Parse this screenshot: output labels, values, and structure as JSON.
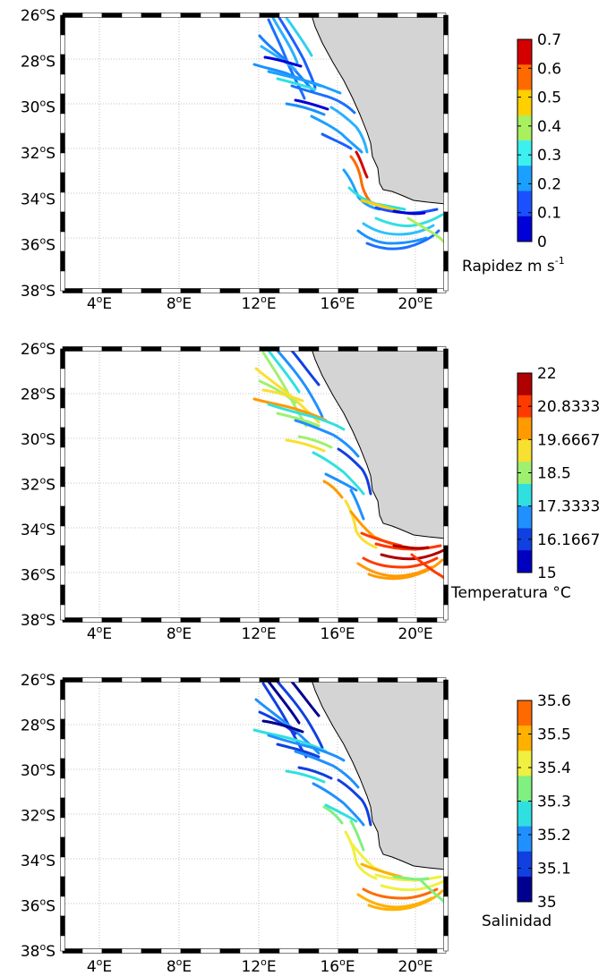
{
  "panels": [
    {
      "id": "speed",
      "colorbar": {
        "title": "Rapidez m s",
        "title_sup": "-1",
        "ticks": [
          "0.7",
          "0.6",
          "0.5",
          "0.4",
          "0.3",
          "0.2",
          "0.1",
          "0"
        ],
        "colors": [
          "#d40000",
          "#ff6a00",
          "#ffd000",
          "#a8f060",
          "#3cf0f0",
          "#1aa0ff",
          "#1a50ff",
          "#0000d8"
        ]
      }
    },
    {
      "id": "temperature",
      "colorbar": {
        "title": "Temperatura °C",
        "title_sup": "",
        "ticks": [
          "22",
          "20.8333",
          "19.6667",
          "18.5",
          "17.3333",
          "16.1667",
          "15"
        ],
        "colors": [
          "#b00000",
          "#ff3a00",
          "#ff9a00",
          "#f8e030",
          "#a0f070",
          "#30e0e0",
          "#2090ff",
          "#1040e0",
          "#0000c0"
        ]
      }
    },
    {
      "id": "salinity",
      "colorbar": {
        "title": "Salinidad",
        "title_sup": "",
        "ticks": [
          "35.6",
          "35.5",
          "35.4",
          "35.3",
          "35.2",
          "35.1",
          "35"
        ],
        "colors": [
          "#ff6a00",
          "#ffb000",
          "#f0f040",
          "#80f080",
          "#30e0e0",
          "#2090ff",
          "#1040e0",
          "#000090"
        ]
      }
    }
  ],
  "axes": {
    "y_ticks": [
      "26",
      "28",
      "30",
      "32",
      "34",
      "36",
      "38"
    ],
    "y_hemisphere": "S",
    "x_ticks": [
      "4",
      "8",
      "12",
      "16",
      "20"
    ],
    "x_hemisphere": "E",
    "degree_sup": "o"
  },
  "map": {
    "land_color": "#d4d4d4",
    "grid": "dotted"
  }
}
